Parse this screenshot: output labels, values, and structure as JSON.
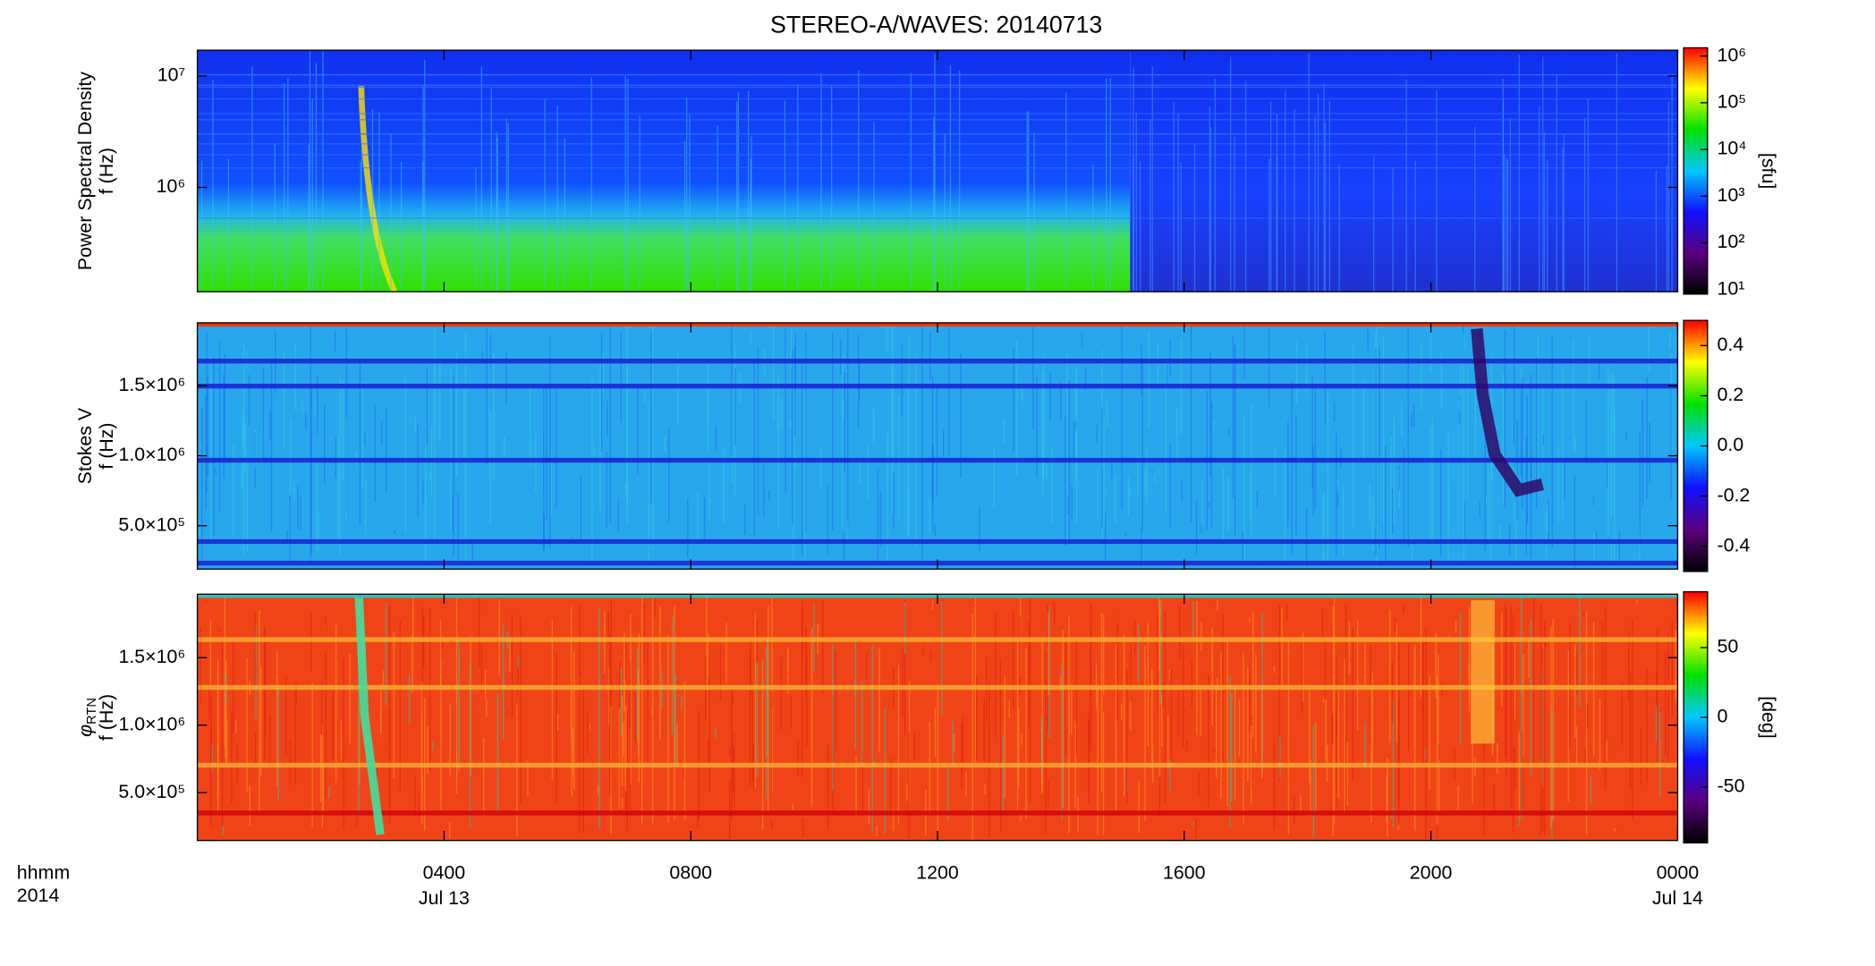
{
  "chart_data": [
    {
      "type": "spectrogram",
      "title": "STEREO-A/WAVES: 20140713",
      "ylabel": [
        "Power Spectral Density",
        "f (Hz)"
      ],
      "ylog": true,
      "ylim": [
        116000,
        17000000
      ],
      "yticks": [
        {
          "value": 1000000,
          "label": "10⁶"
        },
        {
          "value": 10000000,
          "label": "10⁷"
        }
      ],
      "colorbar_label": "[sfu]",
      "clog": true,
      "clim": [
        8,
        1500000
      ],
      "cticks": [
        {
          "value": 10,
          "label": "10¹"
        },
        {
          "value": 100,
          "label": "10²"
        },
        {
          "value": 1000,
          "label": "10³"
        },
        {
          "value": 10000,
          "label": "10⁴"
        },
        {
          "value": 100000,
          "label": "10⁵"
        },
        {
          "value": 1000000,
          "label": "10⁶"
        }
      ],
      "colormap": [
        "#000000",
        "#5a0080",
        "#1010ff",
        "#00c8ff",
        "#00e000",
        "#ffff00",
        "#ff0000"
      ]
    },
    {
      "type": "spectrogram",
      "ylabel": [
        "Stokes V",
        "f (Hz)"
      ],
      "ylog": false,
      "ylim": [
        190000,
        1950000
      ],
      "yticks": [
        {
          "value": 500000,
          "label": "5.0×10⁵"
        },
        {
          "value": 1000000,
          "label": "1.0×10⁶"
        },
        {
          "value": 1500000,
          "label": "1.5×10⁶"
        }
      ],
      "clog": false,
      "clim": [
        -0.5,
        0.5
      ],
      "cticks": [
        -0.4,
        -0.2,
        {
          "value": 0,
          "label": "0.0"
        },
        0.2,
        0.4
      ],
      "colormap": [
        "#000000",
        "#5a0080",
        "#1010ff",
        "#00c8ff",
        "#00e000",
        "#ffff00",
        "#ff0000"
      ]
    },
    {
      "type": "spectrogram",
      "ylabel_symbol": "φ",
      "ylabel_subscript": "RTN",
      "ylabel": [
        "f (Hz)"
      ],
      "ylog": false,
      "ylim": [
        146000,
        1970000
      ],
      "yticks": [
        {
          "value": 500000,
          "label": "5.0×10⁵"
        },
        {
          "value": 1000000,
          "label": "1.0×10⁶"
        },
        {
          "value": 1500000,
          "label": "1.5×10⁶"
        }
      ],
      "colorbar_label": "[deg]",
      "clog": false,
      "clim": [
        -90,
        90
      ],
      "cticks": [
        -50,
        0,
        50
      ],
      "colormap": [
        "#000000",
        "#5a0080",
        "#1010ff",
        "#00c8ff",
        "#00e000",
        "#ffff00",
        "#ff0000"
      ],
      "xlim": [
        0,
        24
      ],
      "xticks": [
        {
          "value": 4,
          "label": "0400"
        },
        {
          "value": 8,
          "label": "0800"
        },
        {
          "value": 12,
          "label": "1200"
        },
        {
          "value": 16,
          "label": "1600"
        },
        {
          "value": 20,
          "label": "2000"
        },
        {
          "value": 24,
          "label": "0000"
        }
      ],
      "xtick_dates": [
        {
          "value": 4,
          "label": "Jul 13"
        },
        {
          "value": 24,
          "label": "Jul 14"
        }
      ],
      "xunit_label": "hhmm",
      "year_label": "2014"
    }
  ]
}
